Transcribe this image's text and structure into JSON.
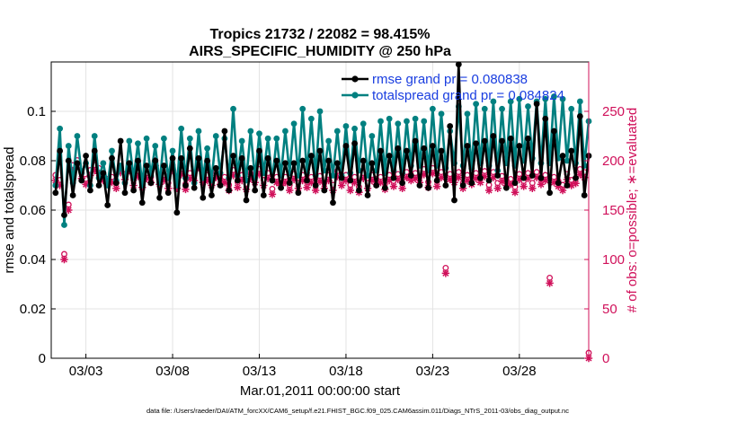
{
  "chart_data": {
    "type": "line",
    "title": "Tropics 21732 / 22082 = 98.415%",
    "subtitle": "AIRS_SPECIFIC_HUMIDITY @ 250 hPa",
    "xlabel": "Mar.01,2011 00:00:00 start",
    "ylabel": "rmse and totalspread",
    "ylabel_right": "# of obs: o=possible; ∗=evaluated",
    "xlim": [
      1.0,
      32.0
    ],
    "ylim": [
      0,
      0.12
    ],
    "ylim_right": [
      0,
      300
    ],
    "x_ticks": [
      3,
      8,
      13,
      18,
      23,
      28
    ],
    "x_tick_labels": [
      "03/03",
      "03/08",
      "03/13",
      "03/18",
      "03/23",
      "03/28"
    ],
    "y_ticks": [
      0,
      0.02,
      0.04,
      0.06,
      0.08,
      0.1
    ],
    "y_tick_labels": [
      "0",
      "0.02",
      "0.04",
      "0.06",
      "0.08",
      "0.1"
    ],
    "y_right_ticks": [
      0,
      50,
      100,
      150,
      200,
      250
    ],
    "y_right_tick_labels": [
      "0",
      "50",
      "100",
      "150",
      "200",
      "250"
    ],
    "grid": true,
    "legend_position": "top-right",
    "legend": [
      "rmse grand pr = 0.080838",
      "totalspread grand pr = 0.084824"
    ],
    "colors": {
      "rmse": "#000000",
      "spread": "#008080",
      "obs": "#d0105a",
      "grid": "#e3e3e3",
      "legend_text": "#1a3ee0"
    },
    "n_points": 124,
    "x_start": 1.25,
    "x_step": 0.25,
    "series": [
      {
        "name": "rmse",
        "values": [
          0.067,
          0.084,
          0.058,
          0.08,
          0.066,
          0.079,
          0.072,
          0.082,
          0.068,
          0.084,
          0.07,
          0.075,
          0.062,
          0.081,
          0.071,
          0.088,
          0.067,
          0.079,
          0.068,
          0.08,
          0.063,
          0.078,
          0.071,
          0.08,
          0.065,
          0.078,
          0.067,
          0.081,
          0.059,
          0.081,
          0.07,
          0.085,
          0.069,
          0.081,
          0.065,
          0.08,
          0.066,
          0.077,
          0.07,
          0.092,
          0.068,
          0.082,
          0.072,
          0.081,
          0.064,
          0.077,
          0.068,
          0.084,
          0.066,
          0.081,
          0.072,
          0.08,
          0.069,
          0.079,
          0.071,
          0.079,
          0.067,
          0.08,
          0.072,
          0.082,
          0.07,
          0.084,
          0.068,
          0.08,
          0.063,
          0.079,
          0.073,
          0.086,
          0.072,
          0.087,
          0.068,
          0.08,
          0.066,
          0.079,
          0.07,
          0.084,
          0.069,
          0.082,
          0.073,
          0.085,
          0.071,
          0.084,
          0.074,
          0.088,
          0.07,
          0.085,
          0.069,
          0.086,
          0.072,
          0.084,
          0.07,
          0.094,
          0.064,
          0.119,
          0.07,
          0.086,
          0.071,
          0.087,
          0.073,
          0.088,
          0.072,
          0.09,
          0.074,
          0.088,
          0.069,
          0.089,
          0.071,
          0.086,
          0.073,
          0.089,
          0.074,
          0.103,
          0.073,
          0.097,
          0.067,
          0.092,
          0.071,
          0.082,
          0.07,
          0.084,
          0.073,
          0.098,
          0.066,
          0.082
        ]
      },
      {
        "name": "totalspread",
        "values": [
          0.07,
          0.093,
          0.054,
          0.086,
          0.071,
          0.09,
          0.075,
          0.079,
          0.07,
          0.09,
          0.073,
          0.079,
          0.07,
          0.084,
          0.072,
          0.078,
          0.071,
          0.088,
          0.073,
          0.087,
          0.07,
          0.089,
          0.074,
          0.086,
          0.071,
          0.089,
          0.073,
          0.084,
          0.07,
          0.093,
          0.073,
          0.089,
          0.071,
          0.092,
          0.073,
          0.085,
          0.072,
          0.09,
          0.075,
          0.089,
          0.073,
          0.101,
          0.074,
          0.088,
          0.072,
          0.092,
          0.073,
          0.091,
          0.075,
          0.089,
          0.072,
          0.089,
          0.074,
          0.092,
          0.075,
          0.095,
          0.074,
          0.101,
          0.075,
          0.097,
          0.074,
          0.1,
          0.076,
          0.088,
          0.074,
          0.092,
          0.074,
          0.094,
          0.075,
          0.093,
          0.076,
          0.095,
          0.074,
          0.09,
          0.076,
          0.096,
          0.075,
          0.097,
          0.076,
          0.095,
          0.075,
          0.096,
          0.078,
          0.097,
          0.078,
          0.096,
          0.076,
          0.101,
          0.078,
          0.099,
          0.077,
          0.092,
          0.079,
          0.102,
          0.078,
          0.099,
          0.077,
          0.103,
          0.079,
          0.101,
          0.078,
          0.104,
          0.076,
          0.101,
          0.079,
          0.104,
          0.078,
          0.105,
          0.08,
          0.102,
          0.081,
          0.104,
          0.079,
          0.105,
          0.079,
          0.106,
          0.081,
          0.105,
          0.08,
          0.101,
          0.079,
          0.104,
          0.078,
          0.096
        ]
      },
      {
        "name": "obs",
        "axis": "right",
        "values": [
          180,
          175,
          100,
          150,
          190,
          195,
          182,
          176,
          185,
          190,
          187,
          180,
          176,
          178,
          172,
          188,
          181,
          190,
          175,
          184,
          173,
          182,
          178,
          195,
          176,
          180,
          172,
          190,
          172,
          186,
          171,
          182,
          180,
          193,
          178,
          180,
          175,
          183,
          176,
          178,
          170,
          185,
          173,
          180,
          171,
          182,
          178,
          186,
          175,
          182,
          166,
          178,
          175,
          178,
          170,
          181,
          172,
          180,
          173,
          178,
          170,
          179,
          172,
          180,
          170,
          184,
          175,
          180,
          170,
          178,
          168,
          182,
          172,
          180,
          176,
          178,
          171,
          180,
          174,
          181,
          172,
          183,
          180,
          182,
          178,
          186,
          173,
          187,
          174,
          183,
          86,
          181,
          178,
          183,
          172,
          180,
          176,
          182,
          178,
          184,
          170,
          183,
          172,
          179,
          175,
          176,
          168,
          181,
          174,
          182,
          172,
          183,
          176,
          180,
          76,
          178,
          174,
          170,
          181,
          175,
          177,
          186,
          183,
          0
        ]
      }
    ]
  },
  "footer": "data file: /Users/raeder/DAI/ATM_forcXX/CAM6_setup/f.e21.FHIST_BGC.f09_025.CAM6assim.011/Diags_NTrS_2011-03/obs_diag_output.nc"
}
